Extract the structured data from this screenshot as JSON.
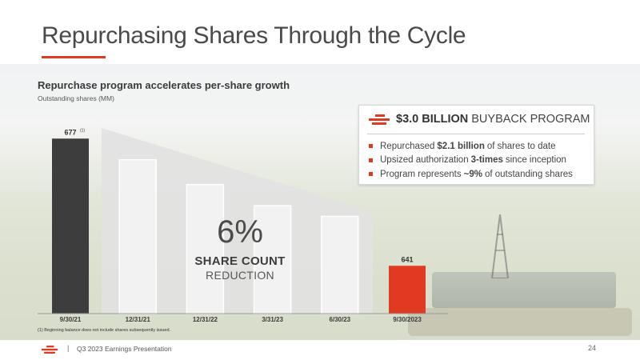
{
  "title": "Repurchasing Shares Through the Cycle",
  "chart_data": {
    "type": "bar",
    "title": "Repurchase program accelerates per-share growth",
    "subtitle": "Outstanding shares (MM)",
    "categories": [
      "9/30/21",
      "12/31/21",
      "12/31/22",
      "3/31/23",
      "6/30/23",
      "9/30/2023"
    ],
    "values": [
      677,
      671,
      664,
      658,
      655,
      641
    ],
    "data_labels": [
      "677",
      "",
      "",
      "",
      "",
      "641"
    ],
    "first_label_footnote": "(1)",
    "bar_colors": [
      "#3d3d3d",
      "outline",
      "outline",
      "outline",
      "outline",
      "#e03a21"
    ],
    "ylim": [
      632,
      680
    ],
    "grid": false,
    "annotation": {
      "value": "6%",
      "line1": "SHARE COUNT",
      "line2": "REDUCTION"
    }
  },
  "callout": {
    "title_bold": "$3.0 BILLION",
    "title_rest": "BUYBACK PROGRAM",
    "bullets": [
      {
        "pre": "Repurchased",
        "bold": "$2.1 billion",
        "post": "of shares to date"
      },
      {
        "pre": "Upsized authorization",
        "bold": "3-times",
        "post": "since inception"
      },
      {
        "pre": "Program represents",
        "bold": "~9%",
        "post": "of outstanding shares"
      }
    ]
  },
  "footnote": "(1) Beginning balance does not include shares subsequently issued.",
  "footer": {
    "separator": "|",
    "presentation": "Q3 2023 Earnings Presentation",
    "page_number": "24"
  },
  "colors": {
    "accent": "#e03a21",
    "dark_bar": "#3d3d3d",
    "wedge": "#e2e2e2"
  }
}
